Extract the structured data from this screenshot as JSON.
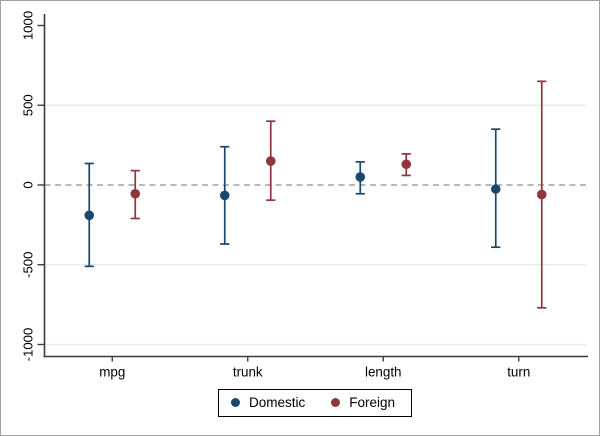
{
  "chart_data": {
    "type": "scatter",
    "subtype": "coefficient-plot-with-ci",
    "title": "",
    "xlabel": "",
    "ylabel": "",
    "categories": [
      "mpg",
      "trunk",
      "length",
      "turn"
    ],
    "series": [
      {
        "name": "Domestic",
        "color": "#1a476f",
        "points": [
          {
            "category": "mpg",
            "estimate": -190,
            "ci_low": -510,
            "ci_high": 135
          },
          {
            "category": "trunk",
            "estimate": -65,
            "ci_low": -370,
            "ci_high": 240
          },
          {
            "category": "length",
            "estimate": 50,
            "ci_low": -55,
            "ci_high": 145
          },
          {
            "category": "turn",
            "estimate": -25,
            "ci_low": -390,
            "ci_high": 350
          }
        ]
      },
      {
        "name": "Foreign",
        "color": "#90353b",
        "points": [
          {
            "category": "mpg",
            "estimate": -55,
            "ci_low": -210,
            "ci_high": 90
          },
          {
            "category": "trunk",
            "estimate": 150,
            "ci_low": -95,
            "ci_high": 400
          },
          {
            "category": "length",
            "estimate": 130,
            "ci_low": 60,
            "ci_high": 195
          },
          {
            "category": "turn",
            "estimate": -60,
            "ci_low": -770,
            "ci_high": 650
          }
        ]
      }
    ],
    "y_axis": {
      "range": [
        -1075,
        1075
      ],
      "ticks": [
        1000,
        500,
        0,
        -500,
        -1000
      ],
      "tick_labels": [
        "1000",
        "500",
        "0",
        "-500",
        "-1000"
      ],
      "gridline_values": [
        500,
        -500,
        -1000
      ],
      "label_rotation_deg": -90
    },
    "zero_line": {
      "value": 0,
      "style": "dashed"
    },
    "legend": {
      "position": "bottom-center",
      "entries": [
        "Domestic",
        "Foreign"
      ]
    },
    "grid": true
  },
  "style": {
    "background": "#ffffff",
    "frame_border": "#a3a3a3",
    "axis_color": "#3c3c3c",
    "text_color": "#000000",
    "gridline_color": "#e2eaec",
    "zero_line_color": "#8f8f8f",
    "legend_border": "#000000",
    "series_colors": {
      "domestic": "#1a476f",
      "foreign": "#90353b"
    }
  }
}
